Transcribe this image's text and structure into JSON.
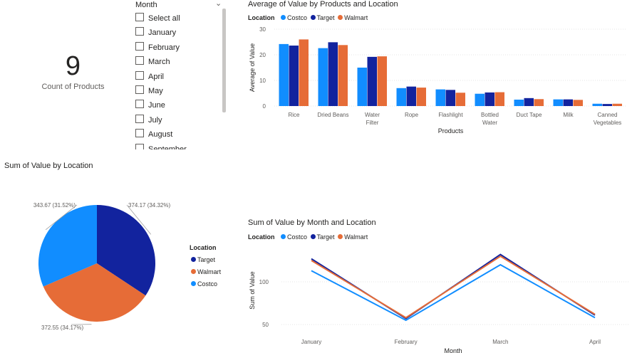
{
  "card": {
    "value": "9",
    "label": "Count of Products"
  },
  "slicer": {
    "title": "Month",
    "items": [
      "Select all",
      "January",
      "February",
      "March",
      "April",
      "May",
      "June",
      "July",
      "August",
      "September"
    ]
  },
  "colors": {
    "Costco": "#118dff",
    "Target": "#12239e",
    "Walmart": "#e66c37"
  },
  "chart_data": [
    {
      "type": "bar",
      "title": "Average of Value by Products and Location",
      "xlabel": "Products",
      "ylabel": "Average of Value",
      "legend_title": "Location",
      "ylim": [
        0,
        30
      ],
      "yticks": [
        0,
        10,
        20,
        30
      ],
      "categories": [
        "Rice",
        "Dried Beans",
        "Water Filter",
        "Rope",
        "Flashlight",
        "Bottled Water",
        "Duct Tape",
        "Milk",
        "Canned Vegetables"
      ],
      "series": [
        {
          "name": "Costco",
          "values": [
            24.2,
            22.6,
            15.0,
            7.0,
            6.5,
            4.8,
            2.5,
            2.6,
            0.9
          ]
        },
        {
          "name": "Target",
          "values": [
            23.6,
            24.9,
            19.2,
            7.6,
            6.3,
            5.3,
            3.1,
            2.6,
            0.8
          ]
        },
        {
          "name": "Walmart",
          "values": [
            26.0,
            23.8,
            19.4,
            7.2,
            5.2,
            5.4,
            2.7,
            2.4,
            0.9
          ]
        }
      ]
    },
    {
      "type": "pie",
      "title": "Sum of Value by Location",
      "legend_title": "Location",
      "slices": [
        {
          "name": "Target",
          "value": 374.17,
          "label": "374.17 (34.32%)"
        },
        {
          "name": "Walmart",
          "value": 372.55,
          "label": "372.55 (34.17%)"
        },
        {
          "name": "Costco",
          "value": 343.67,
          "label": "343.67 (31.52%)"
        }
      ]
    },
    {
      "type": "line",
      "title": "Sum of Value by Month and Location",
      "xlabel": "Month",
      "ylabel": "Sum of Value",
      "legend_title": "Location",
      "ylim": [
        40,
        140
      ],
      "yticks": [
        50,
        100
      ],
      "categories": [
        "January",
        "February",
        "March",
        "April"
      ],
      "series": [
        {
          "name": "Costco",
          "values": [
            113,
            55,
            120,
            58
          ]
        },
        {
          "name": "Target",
          "values": [
            127,
            57,
            132,
            61
          ]
        },
        {
          "name": "Walmart",
          "values": [
            125,
            58,
            130,
            62
          ]
        }
      ]
    }
  ]
}
